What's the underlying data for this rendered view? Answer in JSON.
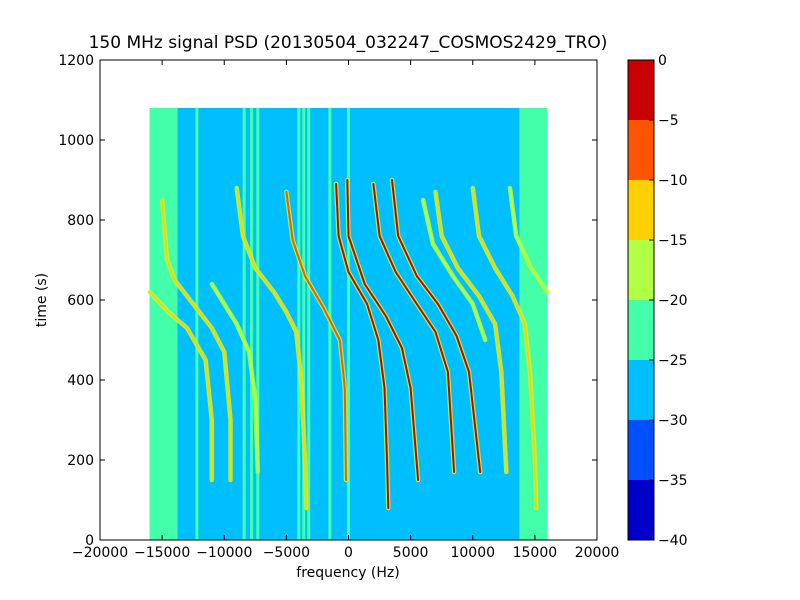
{
  "chart_data": {
    "type": "heatmap",
    "title": "150 MHz signal PSD (20130504_032247_COSMOS2429_TRO)",
    "xlabel": "frequency (Hz)",
    "ylabel": "time (s)",
    "xlim": [
      -20000,
      20000
    ],
    "ylim": [
      0,
      1200
    ],
    "x_ticks": [
      -20000,
      -15000,
      -10000,
      -5000,
      0,
      5000,
      10000,
      15000,
      20000
    ],
    "y_ticks": [
      0,
      200,
      400,
      600,
      800,
      1000,
      1200
    ],
    "data_extent": {
      "x": [
        -16000,
        16000
      ],
      "y": [
        0,
        1080
      ]
    },
    "colorbar": {
      "range": [
        -40,
        0
      ],
      "ticks": [
        0,
        -5,
        -10,
        -15,
        -20,
        -25,
        -30,
        -35,
        -40
      ],
      "levels": [
        {
          "from": -40,
          "to": -35,
          "color": "#0000c8"
        },
        {
          "from": -35,
          "to": -30,
          "color": "#0050ff"
        },
        {
          "from": -30,
          "to": -25,
          "color": "#00bfff"
        },
        {
          "from": -25,
          "to": -20,
          "color": "#44ffaa"
        },
        {
          "from": -20,
          "to": -15,
          "color": "#b0ff44"
        },
        {
          "from": -15,
          "to": -10,
          "color": "#ffd000"
        },
        {
          "from": -10,
          "to": -5,
          "color": "#ff5500"
        },
        {
          "from": -5,
          "to": 0,
          "color": "#c80000"
        }
      ]
    },
    "background_level": -27,
    "edge_level": -22,
    "vertical_lines": [
      {
        "x": -12200,
        "level": -22
      },
      {
        "x": -8400,
        "level": -22
      },
      {
        "x": -7800,
        "level": -22
      },
      {
        "x": -7300,
        "level": -22
      },
      {
        "x": -4000,
        "level": -22
      },
      {
        "x": -3600,
        "level": -22
      },
      {
        "x": -3200,
        "level": -22
      },
      {
        "x": -1500,
        "level": -22
      },
      {
        "x": 0,
        "level": -24
      }
    ],
    "traces": [
      {
        "level": -14,
        "points": [
          [
            -15000,
            850
          ],
          [
            -14600,
            700
          ],
          [
            -14000,
            650
          ],
          [
            -12500,
            590
          ],
          [
            -11000,
            530
          ],
          [
            -10000,
            470
          ],
          [
            -9500,
            300
          ],
          [
            -9500,
            150
          ]
        ]
      },
      {
        "level": -13,
        "points": [
          [
            -16000,
            620
          ],
          [
            -14500,
            570
          ],
          [
            -13000,
            530
          ],
          [
            -11500,
            450
          ],
          [
            -11000,
            300
          ],
          [
            -11000,
            150
          ]
        ]
      },
      {
        "level": -14,
        "points": [
          [
            -9000,
            880
          ],
          [
            -8500,
            760
          ],
          [
            -7500,
            680
          ],
          [
            -6000,
            620
          ],
          [
            -5000,
            570
          ],
          [
            -4200,
            520
          ],
          [
            -3800,
            400
          ],
          [
            -3500,
            200
          ],
          [
            -3400,
            80
          ]
        ]
      },
      {
        "level": -8,
        "points": [
          [
            -5000,
            870
          ],
          [
            -4500,
            750
          ],
          [
            -3500,
            660
          ],
          [
            -2000,
            580
          ],
          [
            -700,
            500
          ],
          [
            -300,
            380
          ],
          [
            -200,
            150
          ]
        ]
      },
      {
        "level": -4,
        "points": [
          [
            -1000,
            890
          ],
          [
            -800,
            760
          ],
          [
            0,
            670
          ],
          [
            1500,
            590
          ],
          [
            2400,
            500
          ],
          [
            2900,
            380
          ],
          [
            3100,
            200
          ],
          [
            3200,
            80
          ]
        ]
      },
      {
        "level": -2,
        "points": [
          [
            -100,
            900
          ],
          [
            0,
            760
          ],
          [
            1300,
            640
          ],
          [
            3000,
            560
          ],
          [
            4300,
            480
          ],
          [
            5000,
            380
          ],
          [
            5600,
            150
          ]
        ]
      },
      {
        "level": -4,
        "points": [
          [
            2000,
            890
          ],
          [
            2500,
            760
          ],
          [
            3800,
            670
          ],
          [
            5500,
            590
          ],
          [
            7000,
            520
          ],
          [
            8000,
            420
          ],
          [
            8500,
            170
          ]
        ]
      },
      {
        "level": -2,
        "points": [
          [
            3500,
            900
          ],
          [
            4000,
            760
          ],
          [
            5500,
            660
          ],
          [
            7200,
            590
          ],
          [
            8700,
            510
          ],
          [
            9700,
            420
          ],
          [
            10600,
            170
          ]
        ]
      },
      {
        "level": -13,
        "points": [
          [
            7000,
            870
          ],
          [
            7500,
            760
          ],
          [
            8800,
            680
          ],
          [
            10500,
            610
          ],
          [
            11800,
            540
          ],
          [
            12300,
            420
          ],
          [
            12700,
            170
          ]
        ]
      },
      {
        "level": -14,
        "points": [
          [
            10000,
            880
          ],
          [
            10500,
            760
          ],
          [
            11800,
            680
          ],
          [
            13200,
            610
          ],
          [
            14200,
            540
          ],
          [
            14600,
            420
          ],
          [
            15000,
            200
          ],
          [
            15100,
            80
          ]
        ]
      },
      {
        "level": -16,
        "points": [
          [
            13000,
            880
          ],
          [
            13500,
            760
          ],
          [
            14700,
            680
          ],
          [
            16000,
            620
          ]
        ]
      },
      {
        "level": -17,
        "points": [
          [
            -11000,
            640
          ],
          [
            -10200,
            600
          ],
          [
            -9000,
            540
          ],
          [
            -8000,
            470
          ],
          [
            -7500,
            350
          ],
          [
            -7300,
            170
          ]
        ]
      },
      {
        "level": -18,
        "points": [
          [
            6000,
            850
          ],
          [
            6800,
            740
          ],
          [
            8400,
            660
          ],
          [
            10000,
            590
          ],
          [
            11000,
            500
          ]
        ]
      }
    ]
  }
}
